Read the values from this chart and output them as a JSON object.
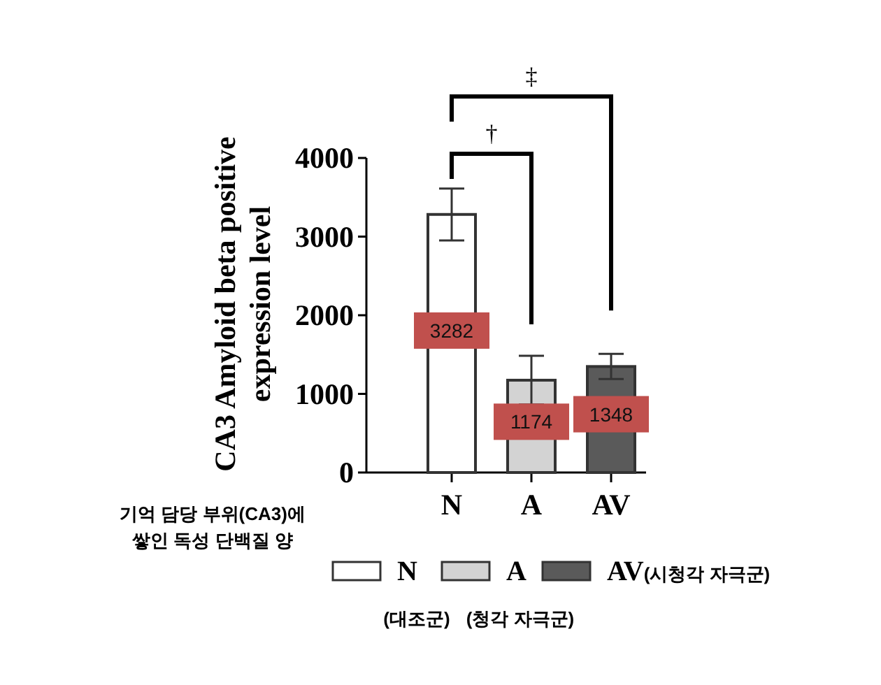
{
  "chart_data": {
    "type": "bar",
    "ylabel": "CA3 Amyloid beta positive expression level",
    "categories": [
      "N",
      "A",
      "AV"
    ],
    "series": [
      {
        "name": "N",
        "color": "#ffffff",
        "values": [
          3282,
          null,
          null
        ],
        "errors": [
          330,
          null,
          null
        ]
      },
      {
        "name": "A",
        "color": "#d3d3d3",
        "values": [
          null,
          1174,
          null
        ],
        "errors": [
          null,
          310,
          null
        ]
      },
      {
        "name": "AV(시청각 자극군)",
        "color": "#5a5a5a",
        "values": [
          null,
          null,
          1348
        ],
        "errors": [
          null,
          null,
          160
        ]
      }
    ],
    "ylim": [
      0,
      4000
    ],
    "yticks": [
      0,
      1000,
      2000,
      3000,
      4000
    ],
    "grid": false,
    "legend": "bottom",
    "data_labels": true,
    "annotations": [
      "‡",
      "†",
      "기억 담당 부위(CA3)에 쌓인 독성 단백질 양",
      "(대조군)",
      "(청각 자극군)"
    ]
  }
}
